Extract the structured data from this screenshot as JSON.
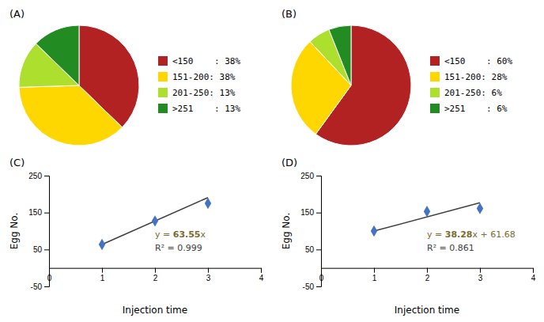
{
  "chart_data": [
    {
      "type": "pie",
      "title": "(A)",
      "categories": [
        "<150    : 38%",
        "151-200: 38%",
        "201-250: 13%",
        ">251    : 13%"
      ],
      "values": [
        38,
        38,
        13,
        13
      ],
      "colors": [
        "#b22222",
        "#FFD700",
        "#ADDF2F",
        "#228B22"
      ],
      "legend": "right"
    },
    {
      "type": "pie",
      "title": "(B)",
      "categories": [
        "<150    : 60%",
        "151-200: 28%",
        "201-250: 6%",
        ">251    : 6%"
      ],
      "values": [
        60,
        28,
        6,
        6
      ],
      "colors": [
        "#b22222",
        "#FFD700",
        "#ADDF2F",
        "#228B22"
      ],
      "legend": "right"
    },
    {
      "type": "scatter",
      "title": "(C)",
      "x_label": "Injection time",
      "y_label": "Egg No.",
      "x": [
        1,
        2,
        3
      ],
      "series": [
        {
          "type": "scatter",
          "color": "#4472C4",
          "marker": "diamond",
          "values": [
            63.55,
            127.1,
            175.0
          ]
        },
        {
          "type": "line",
          "color": "#404040",
          "line_style": "solid",
          "x": [
            1,
            3
          ],
          "values": [
            63.55,
            190.65
          ]
        }
      ],
      "xlim": [
        0,
        4
      ],
      "xticks": [
        0,
        1,
        2,
        3,
        4
      ],
      "ylim": [
        -50,
        250
      ],
      "yticks": [
        -50,
        50,
        150,
        250
      ],
      "grid": false,
      "annotations": [
        {
          "text": [
            "y = ",
            "63.55",
            "x"
          ],
          "color": "#7B6B30"
        },
        {
          "text": "R² = 0.999",
          "color": "#404040"
        }
      ]
    },
    {
      "type": "scatter",
      "title": "(D)",
      "x_label": "Injection time",
      "y_label": "Egg No.",
      "x": [
        1,
        2,
        3
      ],
      "series": [
        {
          "type": "scatter",
          "color": "#4472C4",
          "marker": "diamond",
          "values": [
            99.96,
            153.0,
            161.0
          ]
        },
        {
          "type": "line",
          "color": "#404040",
          "line_style": "solid",
          "x": [
            1,
            3
          ],
          "values": [
            99.96,
            176.52
          ]
        }
      ],
      "xlim": [
        0,
        4
      ],
      "xticks": [
        0,
        1,
        2,
        3,
        4
      ],
      "ylim": [
        -50,
        250
      ],
      "yticks": [
        -50,
        50,
        150,
        250
      ],
      "grid": false,
      "annotations": [
        {
          "text": [
            "y = ",
            "38.28",
            "x + 61.68"
          ],
          "color": "#7B6B30"
        },
        {
          "text": "R² = 0.861",
          "color": "#404040"
        }
      ]
    }
  ]
}
